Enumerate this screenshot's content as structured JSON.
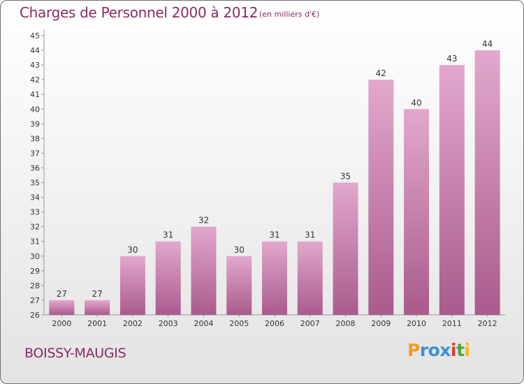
{
  "title": "Charges de Personnel 2000 à 2012",
  "subtitle": "(en milliers d'€)",
  "commune": "BOISSY-MAUGIS",
  "logo": {
    "text": "Proxiti",
    "letters": [
      "P",
      "r",
      "o",
      "x",
      "i",
      "t",
      "i"
    ],
    "colors": [
      "#f39a1b",
      "#3d8fd6",
      "#3d8fd6",
      "#3d8fd6",
      "#e03a2f",
      "#49a83c",
      "#f3bd1b"
    ]
  },
  "colors": {
    "bar_top": "#e2a8cc",
    "bar_bottom": "#a95b8b",
    "text": "#8a2a63",
    "axis": "#999999"
  },
  "chart_data": {
    "type": "bar",
    "categories": [
      "2000",
      "2001",
      "2002",
      "2003",
      "2004",
      "2005",
      "2006",
      "2007",
      "2008",
      "2009",
      "2010",
      "2011",
      "2012"
    ],
    "values": [
      27,
      27,
      30,
      31,
      32,
      30,
      31,
      31,
      35,
      42,
      40,
      43,
      44
    ],
    "title": "Charges de Personnel 2000 à 2012",
    "subtitle": "(en milliers d'€)",
    "ylim": [
      26,
      45
    ],
    "yticks": [
      26,
      27,
      28,
      29,
      30,
      31,
      32,
      33,
      34,
      35,
      36,
      37,
      38,
      39,
      40,
      41,
      42,
      43,
      44,
      45
    ],
    "grid": false,
    "data_labels": true
  }
}
